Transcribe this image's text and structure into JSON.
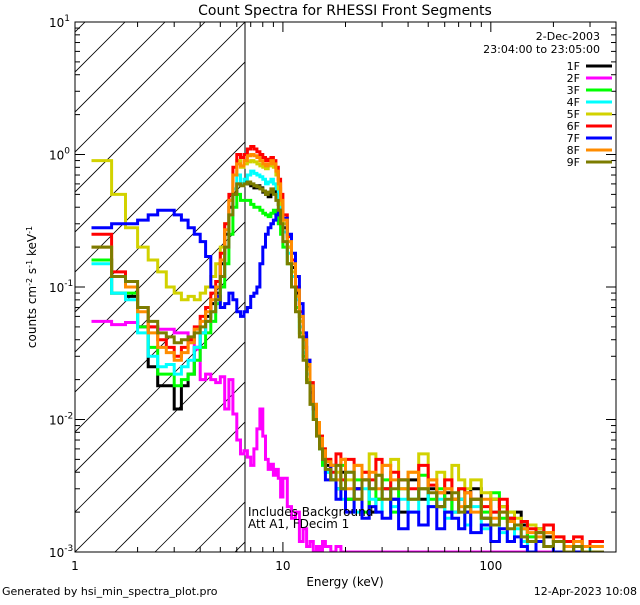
{
  "chart_data": {
    "type": "line",
    "title": "Count Spectra for RHESSI Front Segments",
    "xlabel": "Energy (keV)",
    "ylabel_parts": [
      "counts cm",
      "-2",
      " s",
      "-1",
      " keV",
      "-1"
    ],
    "xscale": "log",
    "yscale": "log",
    "xlim": [
      1,
      400
    ],
    "ylim": [
      0.001,
      10
    ],
    "x_ticks": [
      {
        "value": 1,
        "label": "1"
      },
      {
        "value": 10,
        "label": "10"
      },
      {
        "value": 100,
        "label": "100"
      }
    ],
    "y_ticks": [
      {
        "value": 0.001,
        "base": "10",
        "exp": "-3"
      },
      {
        "value": 0.01,
        "base": "10",
        "exp": "-2"
      },
      {
        "value": 0.1,
        "base": "10",
        "exp": "-1"
      },
      {
        "value": 1,
        "base": "10",
        "exp": "0"
      },
      {
        "value": 10,
        "base": "10",
        "exp": "1"
      }
    ],
    "shaded_region": {
      "x_from": 1,
      "x_to": 6,
      "pattern": "diagonal hatch"
    },
    "legend_header": [
      "2-Dec-2003",
      "23:04:00 to 23:05:00"
    ],
    "legend_position": "top-right",
    "annotations": [
      "Includes Background",
      "Att A1, FDecim 1"
    ],
    "bin_edges": [
      1.2,
      1.5,
      1.75,
      2.0,
      2.25,
      2.5,
      2.75,
      3.0,
      3.25,
      3.5,
      3.75,
      4.0,
      4.25,
      4.5,
      4.75,
      5.0,
      5.25,
      5.5,
      5.75,
      6.0,
      6.25,
      6.5,
      6.75,
      7.0,
      7.25,
      7.5,
      7.75,
      8.0,
      8.25,
      8.5,
      8.75,
      9.0,
      9.25,
      9.5,
      9.75,
      10.0,
      10.5,
      11.0,
      11.5,
      12.0,
      12.5,
      13.0,
      13.5,
      14.0,
      14.5,
      15.0,
      15.5,
      16.0,
      17.0,
      18.0,
      19.0,
      20.0,
      22.0,
      24.0,
      26.0,
      28.0,
      30.0,
      33.0,
      36.0,
      40.0,
      45.0,
      50.0,
      55.0,
      60.0,
      65.0,
      70.0,
      75.0,
      80.0,
      90.0,
      100.0,
      110.0,
      120.0,
      130.0,
      140.0,
      150.0,
      165.0,
      180.0,
      200.0,
      225.0,
      250.0,
      275.0,
      300.0,
      350.0
    ],
    "series": [
      {
        "name": "1F",
        "color": "#000000",
        "values": [
          0.16,
          0.09,
          0.085,
          0.05,
          0.025,
          0.018,
          0.018,
          0.012,
          0.018,
          0.022,
          0.035,
          0.045,
          0.06,
          0.075,
          0.09,
          0.15,
          0.25,
          0.4,
          0.5,
          0.6,
          0.6,
          0.62,
          0.6,
          0.58,
          0.56,
          0.58,
          0.56,
          0.52,
          0.5,
          0.48,
          0.52,
          0.54,
          0.5,
          0.42,
          0.36,
          0.28,
          0.2,
          0.14,
          0.09,
          0.06,
          0.035,
          0.025,
          0.016,
          0.012,
          0.009,
          0.007,
          0.0055,
          0.0045,
          0.0035,
          0.003,
          0.004,
          0.0025,
          0.003,
          0.0035,
          0.002,
          0.0025,
          0.003,
          0.0025,
          0.002,
          0.0035,
          0.0025,
          0.003,
          0.0022,
          0.0028,
          0.002,
          0.0025,
          0.002,
          0.003,
          0.0018,
          0.0025,
          0.0022,
          0.0018,
          0.002,
          0.0016,
          0.0012,
          0.0015,
          0.0013,
          0.0012,
          0.0011,
          0.001,
          0.0011,
          0.0012
        ]
      },
      {
        "name": "2F",
        "color": "#ff00ff",
        "values": [
          0.055,
          0.052,
          0.054,
          0.05,
          0.05,
          0.048,
          0.048,
          0.045,
          0.045,
          0.04,
          0.034,
          0.02,
          0.022,
          0.02,
          0.019,
          0.021,
          0.012,
          0.02,
          0.011,
          0.007,
          0.0055,
          0.0058,
          0.0052,
          0.0045,
          0.006,
          0.0085,
          0.012,
          0.0075,
          0.005,
          0.0042,
          0.0046,
          0.0038,
          0.0042,
          0.0036,
          0.0026,
          0.0036,
          0.0022,
          0.0018,
          0.002,
          0.0012,
          0.0015,
          0.0011,
          0.0012,
          0.001,
          0.0011,
          0.001,
          0.0012,
          0.0011,
          0.001,
          0.0011,
          0.001,
          0.001,
          0.001,
          0.001,
          0.001,
          0.001,
          0.001,
          0.001,
          0.001,
          0.001,
          0.001,
          0.001,
          0.001,
          0.001,
          0.001,
          0.001,
          0.001,
          0.001,
          0.001,
          0.001,
          0.001,
          0.001,
          0.001,
          0.001,
          0.001,
          0.001,
          0.001,
          0.001,
          0.001,
          0.001,
          0.001,
          0.001
        ]
      },
      {
        "name": "3F",
        "color": "#00ff00",
        "values": [
          0.16,
          0.09,
          0.09,
          0.05,
          0.035,
          0.022,
          0.022,
          0.018,
          0.02,
          0.022,
          0.028,
          0.035,
          0.045,
          0.055,
          0.075,
          0.1,
          0.15,
          0.25,
          0.4,
          0.5,
          0.45,
          0.45,
          0.45,
          0.42,
          0.4,
          0.4,
          0.38,
          0.36,
          0.35,
          0.34,
          0.36,
          0.38,
          0.35,
          0.3,
          0.25,
          0.2,
          0.15,
          0.1,
          0.07,
          0.045,
          0.03,
          0.02,
          0.014,
          0.01,
          0.008,
          0.006,
          0.0045,
          0.004,
          0.0035,
          0.003,
          0.0045,
          0.0025,
          0.0035,
          0.002,
          0.003,
          0.0025,
          0.0035,
          0.002,
          0.003,
          0.0025,
          0.0038,
          0.0025,
          0.003,
          0.002,
          0.0025,
          0.003,
          0.0022,
          0.0025,
          0.002,
          0.0028,
          0.0018,
          0.002,
          0.0016,
          0.0015,
          0.0013,
          0.0012,
          0.0011,
          0.0012,
          0.001,
          0.0011,
          0.001,
          0.0012
        ]
      },
      {
        "name": "4F",
        "color": "#00ffff",
        "values": [
          0.15,
          0.09,
          0.08,
          0.045,
          0.03,
          0.025,
          0.026,
          0.022,
          0.025,
          0.028,
          0.035,
          0.045,
          0.055,
          0.065,
          0.08,
          0.12,
          0.2,
          0.35,
          0.55,
          0.7,
          0.6,
          0.65,
          0.7,
          0.75,
          0.72,
          0.7,
          0.68,
          0.65,
          0.6,
          0.62,
          0.65,
          0.6,
          0.55,
          0.45,
          0.35,
          0.26,
          0.18,
          0.12,
          0.08,
          0.05,
          0.032,
          0.022,
          0.015,
          0.011,
          0.008,
          0.006,
          0.005,
          0.004,
          0.0035,
          0.003,
          0.0025,
          0.004,
          0.002,
          0.003,
          0.0025,
          0.002,
          0.003,
          0.0022,
          0.0025,
          0.002,
          0.003,
          0.0022,
          0.0025,
          0.0018,
          0.002,
          0.0025,
          0.0016,
          0.0022,
          0.0015,
          0.002,
          0.0014,
          0.0012,
          0.0015,
          0.0012,
          0.001,
          0.0012,
          0.0011,
          0.001,
          0.0012,
          0.001,
          0.001,
          0.0012
        ]
      },
      {
        "name": "5F",
        "color": "#d2d200",
        "values": [
          0.9,
          0.5,
          0.28,
          0.2,
          0.16,
          0.13,
          0.1,
          0.09,
          0.08,
          0.085,
          0.08,
          0.09,
          0.1,
          0.12,
          0.15,
          0.2,
          0.3,
          0.45,
          0.7,
          0.9,
          0.8,
          0.85,
          0.88,
          0.9,
          0.88,
          0.85,
          0.82,
          0.8,
          0.78,
          0.82,
          0.85,
          0.8,
          0.7,
          0.55,
          0.42,
          0.3,
          0.2,
          0.13,
          0.085,
          0.055,
          0.035,
          0.024,
          0.017,
          0.012,
          0.009,
          0.0075,
          0.006,
          0.005,
          0.0045,
          0.004,
          0.005,
          0.0035,
          0.0045,
          0.004,
          0.0055,
          0.0038,
          0.0045,
          0.005,
          0.0035,
          0.004,
          0.0055,
          0.0035,
          0.004,
          0.003,
          0.0045,
          0.0035,
          0.003,
          0.0035,
          0.0028,
          0.0025,
          0.0022,
          0.002,
          0.0018,
          0.0017,
          0.0016,
          0.0015,
          0.0014,
          0.0013,
          0.0012,
          0.0012,
          0.0011,
          0.0012
        ]
      },
      {
        "name": "6F",
        "color": "#ff0000",
        "values": [
          0.25,
          0.13,
          0.1,
          0.07,
          0.05,
          0.04,
          0.035,
          0.03,
          0.035,
          0.04,
          0.05,
          0.06,
          0.07,
          0.09,
          0.11,
          0.18,
          0.3,
          0.5,
          0.8,
          1.0,
          0.95,
          1.0,
          1.1,
          1.15,
          1.1,
          1.05,
          1.0,
          0.95,
          0.9,
          0.92,
          0.95,
          0.9,
          0.8,
          0.65,
          0.5,
          0.35,
          0.24,
          0.16,
          0.1,
          0.065,
          0.042,
          0.028,
          0.019,
          0.013,
          0.0095,
          0.0075,
          0.006,
          0.005,
          0.004,
          0.0055,
          0.0035,
          0.005,
          0.003,
          0.004,
          0.0035,
          0.005,
          0.003,
          0.004,
          0.0035,
          0.003,
          0.0045,
          0.0032,
          0.0028,
          0.0035,
          0.0025,
          0.003,
          0.0028,
          0.0025,
          0.0022,
          0.002,
          0.0025,
          0.0018,
          0.0016,
          0.0017,
          0.0015,
          0.0014,
          0.0016,
          0.0013,
          0.0012,
          0.0013,
          0.0011,
          0.0012
        ]
      },
      {
        "name": "7F",
        "color": "#0000ff",
        "values": [
          0.28,
          0.3,
          0.3,
          0.32,
          0.35,
          0.38,
          0.38,
          0.35,
          0.32,
          0.28,
          0.25,
          0.22,
          0.17,
          0.1,
          0.085,
          0.07,
          0.075,
          0.09,
          0.08,
          0.065,
          0.06,
          0.065,
          0.07,
          0.085,
          0.09,
          0.1,
          0.15,
          0.2,
          0.25,
          0.28,
          0.3,
          0.32,
          0.35,
          0.38,
          0.35,
          0.33,
          0.25,
          0.18,
          0.12,
          0.075,
          0.045,
          0.028,
          0.018,
          0.012,
          0.009,
          0.0065,
          0.005,
          0.0035,
          0.0045,
          0.0025,
          0.003,
          0.002,
          0.003,
          0.0018,
          0.0022,
          0.002,
          0.0018,
          0.0025,
          0.0015,
          0.002,
          0.0016,
          0.0022,
          0.0015,
          0.002,
          0.0018,
          0.0015,
          0.002,
          0.0014,
          0.0016,
          0.0012,
          0.0015,
          0.0012,
          0.0013,
          0.0011,
          0.001,
          0.0012,
          0.0011,
          0.001,
          0.0011,
          0.001,
          0.001,
          0.001
        ]
      },
      {
        "name": "8F",
        "color": "#ff8c00",
        "values": [
          0.2,
          0.12,
          0.1,
          0.065,
          0.045,
          0.035,
          0.032,
          0.028,
          0.032,
          0.038,
          0.048,
          0.055,
          0.065,
          0.08,
          0.1,
          0.16,
          0.27,
          0.45,
          0.7,
          0.85,
          0.82,
          0.9,
          0.98,
          1.0,
          0.98,
          0.95,
          0.9,
          0.85,
          0.82,
          0.85,
          0.9,
          0.85,
          0.75,
          0.6,
          0.45,
          0.32,
          0.22,
          0.15,
          0.095,
          0.06,
          0.04,
          0.026,
          0.018,
          0.013,
          0.0095,
          0.0072,
          0.0058,
          0.0048,
          0.0045,
          0.0035,
          0.005,
          0.003,
          0.0045,
          0.0035,
          0.004,
          0.003,
          0.0045,
          0.0035,
          0.003,
          0.004,
          0.003,
          0.0035,
          0.0028,
          0.003,
          0.0025,
          0.0022,
          0.0028,
          0.002,
          0.0025,
          0.0018,
          0.002,
          0.0017,
          0.0016,
          0.0015,
          0.0014,
          0.0013,
          0.0014,
          0.0012,
          0.0011,
          0.0012,
          0.0011,
          0.0011
        ]
      },
      {
        "name": "9F",
        "color": "#7c7c00",
        "values": [
          0.2,
          0.12,
          0.11,
          0.07,
          0.055,
          0.045,
          0.042,
          0.038,
          0.04,
          0.042,
          0.045,
          0.05,
          0.055,
          0.065,
          0.08,
          0.12,
          0.2,
          0.35,
          0.5,
          0.6,
          0.58,
          0.6,
          0.62,
          0.6,
          0.58,
          0.57,
          0.55,
          0.53,
          0.5,
          0.52,
          0.55,
          0.5,
          0.45,
          0.38,
          0.3,
          0.22,
          0.15,
          0.1,
          0.065,
          0.042,
          0.028,
          0.019,
          0.013,
          0.01,
          0.0075,
          0.006,
          0.005,
          0.0042,
          0.0035,
          0.0045,
          0.003,
          0.004,
          0.0025,
          0.0035,
          0.003,
          0.0038,
          0.0025,
          0.003,
          0.0035,
          0.0025,
          0.003,
          0.0028,
          0.0022,
          0.0025,
          0.0028,
          0.002,
          0.0022,
          0.0025,
          0.0018,
          0.0016,
          0.002,
          0.0015,
          0.0016,
          0.0013,
          0.0012,
          0.0014,
          0.0011,
          0.0012,
          0.001,
          0.0011,
          0.001,
          0.001
        ]
      }
    ]
  },
  "footer": {
    "generated_by": "Generated by hsi_min_spectra_plot.pro",
    "timestamp": "12-Apr-2023 10:08"
  }
}
